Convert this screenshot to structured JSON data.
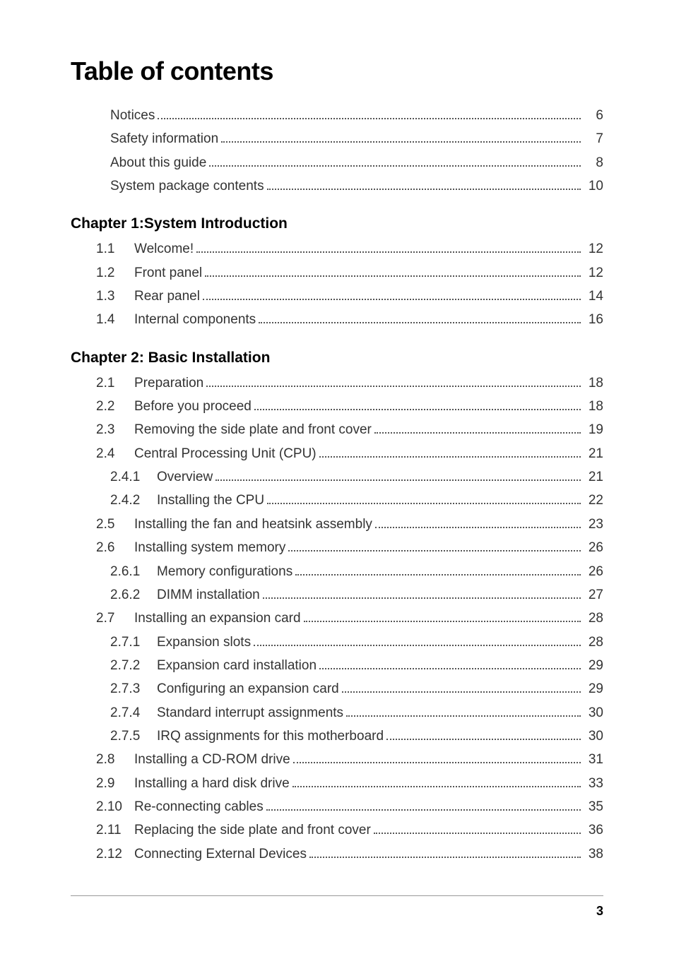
{
  "title": "Table of contents",
  "colors": {
    "text_primary": "#000000",
    "text_body": "#333333",
    "dots": "#555555",
    "divider": "#999999",
    "background": "#ffffff"
  },
  "typography": {
    "title_fontsize": 36,
    "title_weight": 900,
    "chapter_fontsize": 21,
    "chapter_weight": "bold",
    "body_fontsize": 19,
    "footer_fontsize": 18
  },
  "prelim": [
    {
      "label": "Notices",
      "page": "6"
    },
    {
      "label": "Safety information",
      "page": "7"
    },
    {
      "label": "About this guide",
      "page": "8"
    },
    {
      "label": "System package contents",
      "page": "10"
    }
  ],
  "chapters": [
    {
      "heading": "Chapter  1:System Introduction",
      "sections": [
        {
          "num": "1.1",
          "label": "Welcome!",
          "page": "12",
          "subs": []
        },
        {
          "num": "1.2",
          "label": "Front panel",
          "page": "12",
          "subs": []
        },
        {
          "num": "1.3",
          "label": "Rear panel",
          "page": "14",
          "subs": []
        },
        {
          "num": "1.4",
          "label": "Internal components",
          "page": "16",
          "subs": []
        }
      ]
    },
    {
      "heading": "Chapter  2: Basic Installation",
      "sections": [
        {
          "num": "2.1",
          "label": "Preparation",
          "page": "18",
          "subs": []
        },
        {
          "num": "2.2",
          "label": "Before you proceed",
          "page": "18",
          "subs": []
        },
        {
          "num": "2.3",
          "label": "Removing the side plate and front cover",
          "page": "19",
          "subs": []
        },
        {
          "num": "2.4",
          "label": "Central Processing Unit (CPU)",
          "page": "21",
          "subs": [
            {
              "num": "2.4.1",
              "label": "Overview",
              "page": "21"
            },
            {
              "num": "2.4.2",
              "label": "Installing the CPU",
              "page": "22"
            }
          ]
        },
        {
          "num": "2.5",
          "label": "Installing the fan and heatsink assembly",
          "page": "23",
          "subs": []
        },
        {
          "num": "2.6",
          "label": "Installing system memory",
          "page": "26",
          "subs": [
            {
              "num": "2.6.1",
              "label": "Memory configurations",
              "page": "26"
            },
            {
              "num": "2.6.2",
              "label": "DIMM installation",
              "page": "27"
            }
          ]
        },
        {
          "num": "2.7",
          "label": "Installing an expansion card",
          "page": "28",
          "subs": [
            {
              "num": "2.7.1",
              "label": "Expansion slots",
              "page": "28"
            },
            {
              "num": "2.7.2",
              "label": "Expansion card installation",
              "page": "29"
            },
            {
              "num": "2.7.3",
              "label": "Configuring an expansion card",
              "page": "29"
            },
            {
              "num": "2.7.4",
              "label": "Standard interrupt assignments",
              "page": "30"
            },
            {
              "num": "2.7.5",
              "label": "IRQ assignments for this motherboard",
              "page": "30"
            }
          ]
        },
        {
          "num": "2.8",
          "label": "Installing a CD-ROM drive",
          "page": "31",
          "subs": []
        },
        {
          "num": "2.9",
          "label": "Installing a hard disk drive",
          "page": "33",
          "subs": []
        },
        {
          "num": "2.10",
          "label": "Re-connecting cables",
          "page": "35",
          "subs": []
        },
        {
          "num": "2.11",
          "label": "Replacing the side plate and front cover",
          "page": "36",
          "subs": []
        },
        {
          "num": "2.12",
          "label": "Connecting External Devices",
          "page": "38",
          "subs": []
        }
      ]
    }
  ],
  "footer_page": "3"
}
